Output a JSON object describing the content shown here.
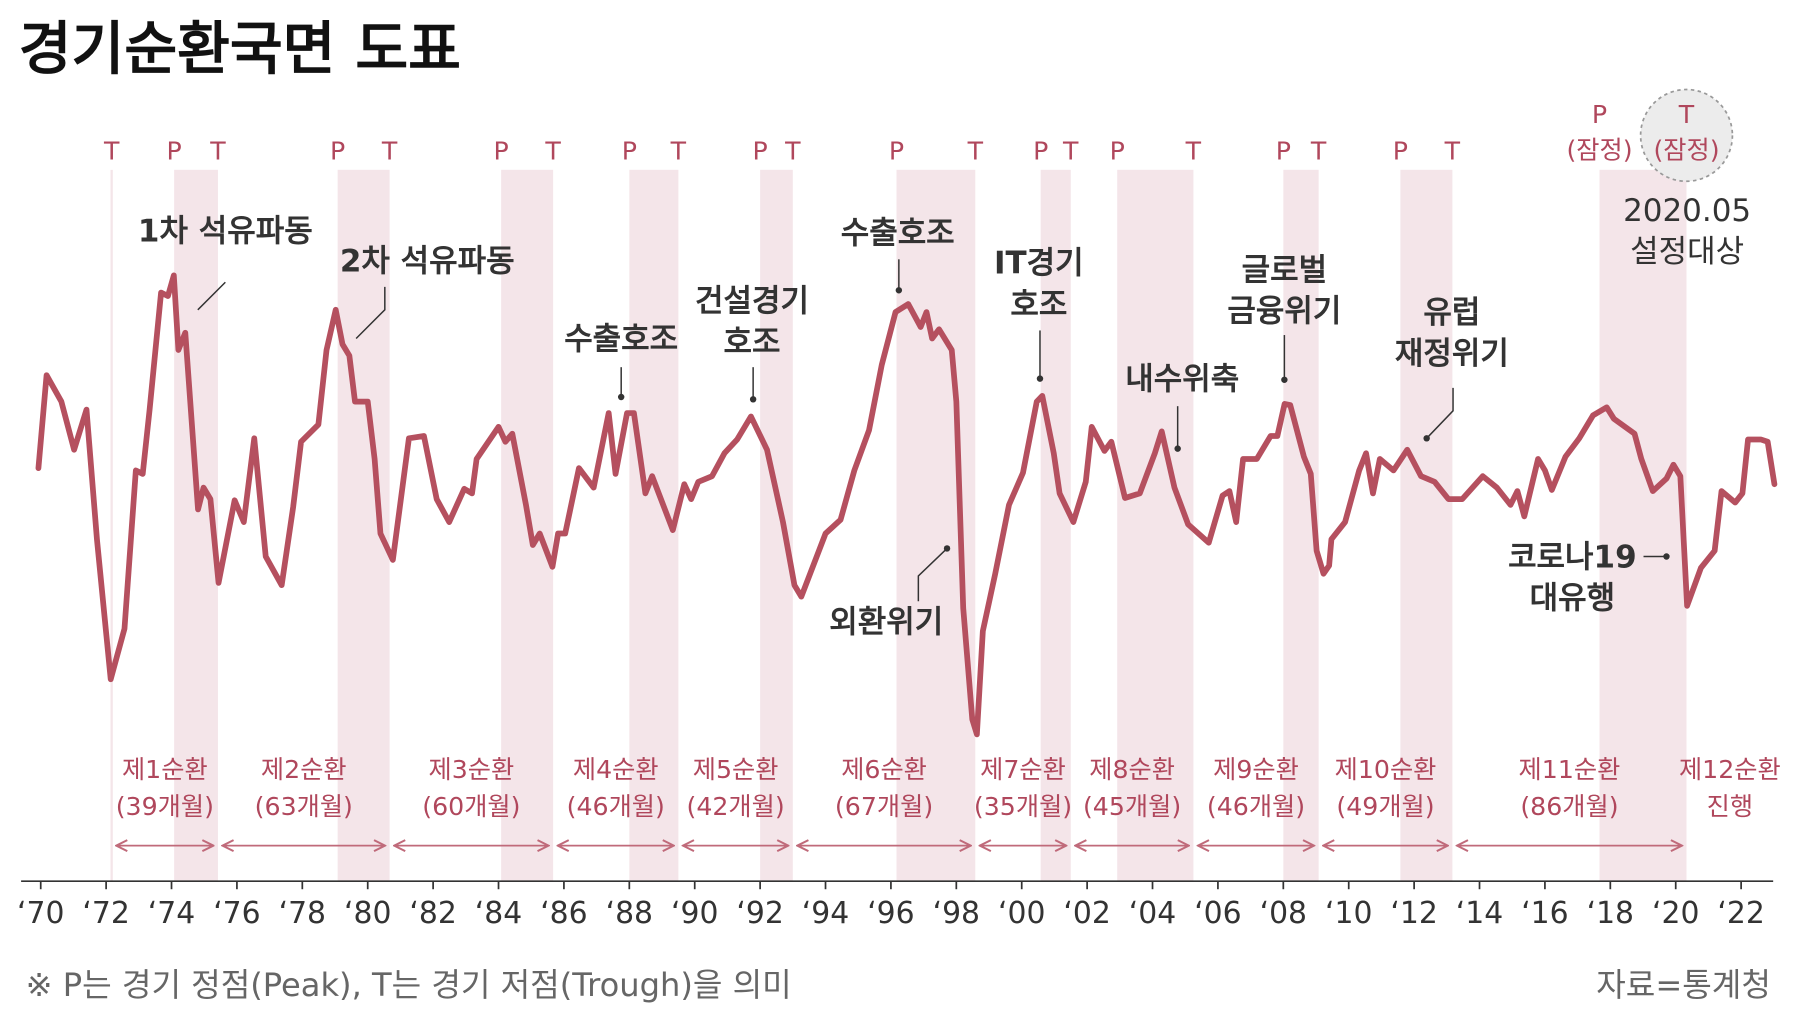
{
  "chart_data": {
    "type": "line",
    "title": "경기순환국면 도표",
    "x": [
      1969.93,
      1970.18,
      1970.63,
      1971.02,
      1971.4,
      1971.72,
      1972.14,
      1972.56,
      1972.91,
      1973.12,
      1973.33,
      1973.68,
      1973.89,
      1974.07,
      1974.21,
      1974.42,
      1974.81,
      1974.98,
      1975.19,
      1975.44,
      1975.93,
      1976.21,
      1976.53,
      1976.88,
      1977.37,
      1977.72,
      1977.96,
      1978.49,
      1978.74,
      1979.02,
      1979.23,
      1979.44,
      1979.61,
      1980.0,
      1980.21,
      1980.39,
      1980.77,
      1981.26,
      1981.72,
      1982.11,
      1982.49,
      1982.95,
      1983.19,
      1983.33,
      1984.0,
      1984.21,
      1984.42,
      1984.84,
      1985.05,
      1985.26,
      1985.65,
      1985.82,
      1986.04,
      1986.46,
      1986.91,
      1987.37,
      1987.58,
      1987.93,
      1988.14,
      1988.49,
      1988.7,
      1989.33,
      1989.68,
      1989.89,
      1990.11,
      1990.53,
      1990.91,
      1991.3,
      1991.72,
      1992.21,
      1992.7,
      1993.05,
      1993.26,
      1994.0,
      1994.46,
      1994.88,
      1995.33,
      1995.72,
      1996.14,
      1996.53,
      1996.91,
      1997.09,
      1997.26,
      1997.47,
      1997.86,
      1998.0,
      1998.21,
      1998.49,
      1998.63,
      1998.81,
      1999.19,
      1999.61,
      2000.04,
      2000.46,
      2000.63,
      2000.98,
      2001.16,
      2001.58,
      2001.96,
      2002.14,
      2002.53,
      2002.74,
      2003.16,
      2003.61,
      2004.07,
      2004.28,
      2004.67,
      2005.09,
      2005.72,
      2006.14,
      2006.35,
      2006.56,
      2006.77,
      2007.19,
      2007.61,
      2007.82,
      2008.04,
      2008.21,
      2008.63,
      2008.84,
      2009.02,
      2009.23,
      2009.4,
      2009.47,
      2009.89,
      2010.32,
      2010.53,
      2010.74,
      2010.95,
      2011.37,
      2011.79,
      2012.21,
      2012.63,
      2013.05,
      2013.47,
      2014.1,
      2014.53,
      2014.95,
      2015.16,
      2015.37,
      2015.79,
      2016.0,
      2016.21,
      2016.63,
      2017.05,
      2017.47,
      2017.89,
      2018.11,
      2018.74,
      2018.95,
      2019.3,
      2019.72,
      2019.93,
      2020.14,
      2020.35,
      2020.77,
      2021.19,
      2021.4,
      2021.82,
      2022.04,
      2022.21,
      2022.6,
      2022.81,
      2023.02
    ],
    "values": [
      100.1,
      104.15,
      103.0,
      100.9,
      102.65,
      97.0,
      90.9,
      93.1,
      100.0,
      99.85,
      102.65,
      107.75,
      107.6,
      108.5,
      105.25,
      106.0,
      98.3,
      99.25,
      98.75,
      95.1,
      98.7,
      97.75,
      101.4,
      96.25,
      95.0,
      98.4,
      101.25,
      102.0,
      105.25,
      107.0,
      105.5,
      105.0,
      103.0,
      103.0,
      100.5,
      97.25,
      96.1,
      101.4,
      101.5,
      98.75,
      97.75,
      99.2,
      99.0,
      100.5,
      101.9,
      101.25,
      101.6,
      98.5,
      96.75,
      97.25,
      95.8,
      97.25,
      97.25,
      100.1,
      99.25,
      102.5,
      99.85,
      102.5,
      102.5,
      99.0,
      99.75,
      97.4,
      99.4,
      98.75,
      99.5,
      99.75,
      100.75,
      101.35,
      102.35,
      100.9,
      97.75,
      95.0,
      94.5,
      97.25,
      97.85,
      100.0,
      101.75,
      104.6,
      106.9,
      107.25,
      106.25,
      106.9,
      105.75,
      106.15,
      105.25,
      103.0,
      94.0,
      89.15,
      88.5,
      93.0,
      95.5,
      98.5,
      99.9,
      103.0,
      103.25,
      100.75,
      99.0,
      97.75,
      99.5,
      101.9,
      100.85,
      101.25,
      98.8,
      99.0,
      100.75,
      101.7,
      99.25,
      97.65,
      96.85,
      98.9,
      99.1,
      97.75,
      100.5,
      100.5,
      101.5,
      101.5,
      102.9,
      102.85,
      100.6,
      99.85,
      96.5,
      95.5,
      95.85,
      97.0,
      97.75,
      100.0,
      100.75,
      99.0,
      100.5,
      100.0,
      100.9,
      99.75,
      99.5,
      98.75,
      98.75,
      99.75,
      99.25,
      98.5,
      99.1,
      98.0,
      100.5,
      100.0,
      99.15,
      100.6,
      101.4,
      102.4,
      102.75,
      102.25,
      101.6,
      100.5,
      99.1,
      99.65,
      100.25,
      99.75,
      94.1,
      95.75,
      96.5,
      99.1,
      98.6,
      99.0,
      101.35,
      101.35,
      101.25,
      99.4
    ],
    "color": "#b5505f",
    "band_color": "#f4e5e9",
    "tp_color": "#b0475c",
    "xlim": [
      1969.4,
      2022.98
    ],
    "ylim": [
      82,
      115
    ],
    "xticks": [
      {
        "value": 1970,
        "label": "‘70"
      },
      {
        "value": 1972,
        "label": "‘72"
      },
      {
        "value": 1974,
        "label": "‘74"
      },
      {
        "value": 1976,
        "label": "‘76"
      },
      {
        "value": 1978,
        "label": "‘78"
      },
      {
        "value": 1980,
        "label": "‘80"
      },
      {
        "value": 1982,
        "label": "‘82"
      },
      {
        "value": 1984,
        "label": "‘84"
      },
      {
        "value": 1986,
        "label": "‘86"
      },
      {
        "value": 1988,
        "label": "‘88"
      },
      {
        "value": 1990,
        "label": "‘90"
      },
      {
        "value": 1992,
        "label": "‘92"
      },
      {
        "value": 1994,
        "label": "‘94"
      },
      {
        "value": 1996,
        "label": "‘96"
      },
      {
        "value": 1998,
        "label": "‘98"
      },
      {
        "value": 2000,
        "label": "‘00"
      },
      {
        "value": 2002,
        "label": "‘02"
      },
      {
        "value": 2004,
        "label": "‘04"
      },
      {
        "value": 2006,
        "label": "‘06"
      },
      {
        "value": 2008,
        "label": "‘08"
      },
      {
        "value": 2010,
        "label": "‘10"
      },
      {
        "value": 2012,
        "label": "‘12"
      },
      {
        "value": 2014,
        "label": "‘14"
      },
      {
        "value": 2016,
        "label": "‘16"
      },
      {
        "value": 2018,
        "label": "‘18"
      },
      {
        "value": 2020,
        "label": "‘20"
      },
      {
        "value": 2022,
        "label": "‘22"
      }
    ],
    "turning_points": [
      {
        "label": "T",
        "x": 1972.17
      },
      {
        "label": "P",
        "x": 1974.08
      },
      {
        "label": "T",
        "x": 1975.42
      },
      {
        "label": "P",
        "x": 1979.08
      },
      {
        "label": "T",
        "x": 1980.67
      },
      {
        "label": "P",
        "x": 1984.08
      },
      {
        "label": "T",
        "x": 1985.67
      },
      {
        "label": "P",
        "x": 1988.0
      },
      {
        "label": "T",
        "x": 1989.5
      },
      {
        "label": "P",
        "x": 1992.0
      },
      {
        "label": "T",
        "x": 1993.0
      },
      {
        "label": "P",
        "x": 1996.17
      },
      {
        "label": "T",
        "x": 1998.58
      },
      {
        "label": "P",
        "x": 2000.58
      },
      {
        "label": "T",
        "x": 2001.5
      },
      {
        "label": "P",
        "x": 2002.92
      },
      {
        "label": "T",
        "x": 2005.25
      },
      {
        "label": "P",
        "x": 2008.0
      },
      {
        "label": "T",
        "x": 2009.08
      },
      {
        "label": "P",
        "x": 2011.58
      },
      {
        "label": "T",
        "x": 2013.17
      },
      {
        "label": "P",
        "x": 2017.67,
        "note": "(잠정)"
      },
      {
        "label": "T",
        "x": 2020.33,
        "note": "(잠정)"
      }
    ],
    "cycles": [
      {
        "name": "제1순환",
        "detail": "(39개월)"
      },
      {
        "name": "제2순환",
        "detail": "(63개월)"
      },
      {
        "name": "제3순환",
        "detail": "(60개월)"
      },
      {
        "name": "제4순환",
        "detail": "(46개월)"
      },
      {
        "name": "제5순환",
        "detail": "(42개월)"
      },
      {
        "name": "제6순환",
        "detail": "(67개월)"
      },
      {
        "name": "제7순환",
        "detail": "(35개월)"
      },
      {
        "name": "제8순환",
        "detail": "(45개월)"
      },
      {
        "name": "제9순환",
        "detail": "(46개월)"
      },
      {
        "name": "제10순환",
        "detail": "(49개월)"
      },
      {
        "name": "제11순환",
        "detail": "(86개월)"
      },
      {
        "name": "제12순환",
        "detail": "진행"
      }
    ],
    "annotations": [
      {
        "lines": [
          "1차 석유파동"
        ]
      },
      {
        "lines": [
          "2차 석유파동"
        ]
      },
      {
        "lines": [
          "수출호조"
        ]
      },
      {
        "lines": [
          "건설경기",
          "호조"
        ]
      },
      {
        "lines": [
          "수출호조"
        ]
      },
      {
        "lines": [
          "외환위기"
        ]
      },
      {
        "lines": [
          "IT경기",
          "호조"
        ]
      },
      {
        "lines": [
          "내수위축"
        ]
      },
      {
        "lines": [
          "글로벌",
          "금융위기"
        ]
      },
      {
        "lines": [
          "유럽",
          "재정위기"
        ]
      },
      {
        "lines": [
          "코로나19",
          "대유행"
        ]
      },
      {
        "lines": [
          "2020.05",
          "설정대상"
        ]
      }
    ],
    "footnote": "※ P는 경기 정점(Peak), T는 경기 저점(Trough)을 의미",
    "source": "자료=통계청"
  }
}
